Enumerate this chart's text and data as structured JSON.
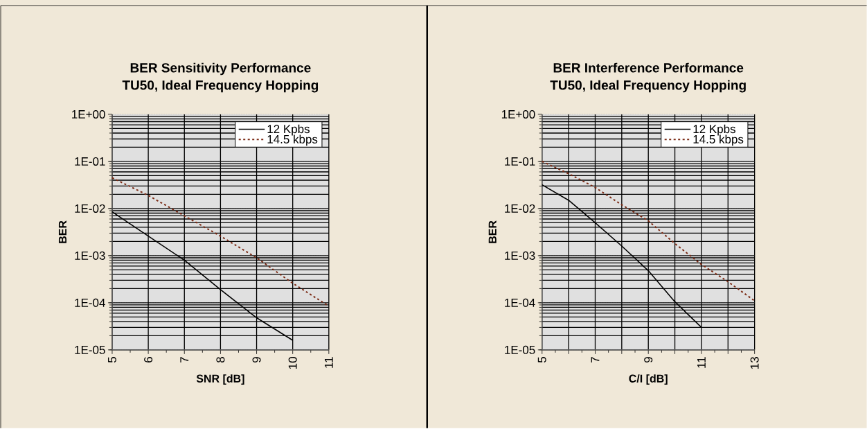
{
  "chart_data": [
    {
      "type": "line",
      "title": "BER Sensitivity Performance",
      "subtitle": "TU50, Ideal Frequency Hopping",
      "xlabel": "SNR [dB]",
      "ylabel": "BER",
      "log": "y",
      "grid": true,
      "legend": "top right",
      "xlim": [
        5,
        11
      ],
      "xticks": [
        5,
        6,
        7,
        8,
        9,
        10,
        11
      ],
      "ylim": [
        1e-05,
        1
      ],
      "yticks": [
        {
          "value": 1e-05,
          "label": "1E-05"
        },
        {
          "value": 0.0001,
          "label": "1E-04"
        },
        {
          "value": 0.001,
          "label": "1E-03"
        },
        {
          "value": 0.01,
          "label": "1E-02"
        },
        {
          "value": 0.1,
          "label": "1E-01"
        },
        {
          "value": 1,
          "label": "1E+00"
        }
      ],
      "x": [
        5,
        6,
        7,
        8,
        9,
        10,
        11
      ],
      "series": [
        {
          "name": "12 Kpbs",
          "color": "#000000",
          "line_style": "solid",
          "values": [
            0.0085,
            0.0026,
            0.0008,
            0.00019,
            4.8e-05,
            1.6e-05,
            null
          ]
        },
        {
          "name": "14.5 kbps",
          "color": "#7b2a14",
          "line_style": "dashed",
          "values": [
            0.045,
            0.019,
            0.007,
            0.0026,
            0.0009,
            0.00026,
            8.5e-05
          ]
        }
      ]
    },
    {
      "type": "line",
      "title": "BER Interference Performance",
      "subtitle": "TU50, Ideal Frequency Hopping",
      "xlabel": "C/I [dB]",
      "ylabel": "BER",
      "log": "y",
      "grid": true,
      "legend": "top right",
      "xlim": [
        5,
        13
      ],
      "xticks": [
        5,
        {
          "value": 6,
          "label": null
        },
        7,
        {
          "value": 8,
          "label": null
        },
        9,
        {
          "value": 10,
          "label": null
        },
        11,
        {
          "value": 12,
          "label": null
        },
        13
      ],
      "ylim": [
        1e-05,
        1
      ],
      "yticks": [
        {
          "value": 1e-05,
          "label": "1E-05"
        },
        {
          "value": 0.0001,
          "label": "1E-04"
        },
        {
          "value": 0.001,
          "label": "1E-03"
        },
        {
          "value": 0.01,
          "label": "1E-02"
        },
        {
          "value": 0.1,
          "label": "1E-01"
        },
        {
          "value": 1,
          "label": "1E+00"
        }
      ],
      "x": [
        5,
        6,
        7,
        8,
        9,
        10,
        11,
        12,
        13
      ],
      "series": [
        {
          "name": "12 Kpbs",
          "color": "#000000",
          "line_style": "solid",
          "values": [
            0.032,
            0.015,
            0.005,
            0.0016,
            0.00048,
            0.000105,
            3e-05,
            null,
            null
          ]
        },
        {
          "name": "14.5 kbps",
          "color": "#7b2a14",
          "line_style": "dashed",
          "values": [
            0.1,
            0.055,
            0.028,
            0.012,
            0.0055,
            0.0018,
            0.00065,
            0.00028,
            0.00011
          ]
        }
      ]
    }
  ]
}
